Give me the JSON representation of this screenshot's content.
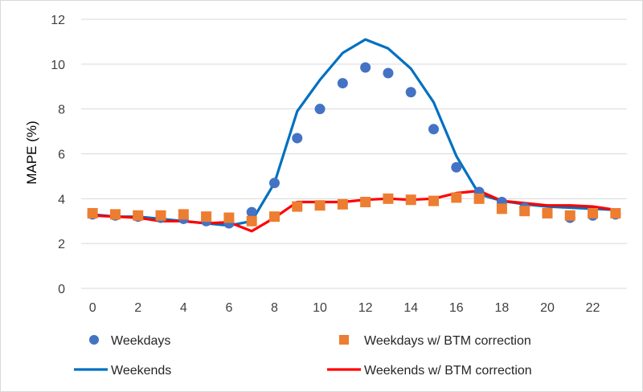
{
  "chart_data": {
    "type": "line",
    "xlabel": "",
    "ylabel": "MAPE (%)",
    "ylim": [
      0,
      12
    ],
    "xlim": [
      0,
      23
    ],
    "y_ticks": [
      "0",
      "2",
      "4",
      "6",
      "8",
      "10",
      "12"
    ],
    "x_ticks": [
      "0",
      "2",
      "4",
      "6",
      "8",
      "10",
      "12",
      "14",
      "16",
      "18",
      "20",
      "22"
    ],
    "grid": "horizontal",
    "legend_position": "bottom",
    "x": [
      0,
      1,
      2,
      3,
      4,
      5,
      6,
      7,
      8,
      9,
      10,
      11,
      12,
      13,
      14,
      15,
      16,
      17,
      18,
      19,
      20,
      21,
      22,
      23
    ],
    "series": [
      {
        "name": "Weekdays",
        "style": "circle-markers",
        "color": "#4472c4",
        "values": [
          3.3,
          3.25,
          3.2,
          3.15,
          3.1,
          3.0,
          2.9,
          3.4,
          4.7,
          6.7,
          8.0,
          9.15,
          9.85,
          9.6,
          8.75,
          7.1,
          5.4,
          4.3,
          3.85,
          3.6,
          3.35,
          3.15,
          3.25,
          3.3
        ]
      },
      {
        "name": "Weekdays w/ BTM correction",
        "style": "square-markers",
        "color": "#ed7d31",
        "values": [
          3.35,
          3.3,
          3.25,
          3.25,
          3.3,
          3.2,
          3.15,
          3.0,
          3.2,
          3.65,
          3.7,
          3.75,
          3.85,
          4.0,
          3.95,
          3.9,
          4.05,
          4.0,
          3.55,
          3.45,
          3.35,
          3.25,
          3.35,
          3.35
        ]
      },
      {
        "name": "Weekends",
        "style": "line",
        "color": "#0070c0",
        "values": [
          3.3,
          3.2,
          3.2,
          3.1,
          3.0,
          2.9,
          2.8,
          3.0,
          4.7,
          7.9,
          9.3,
          10.5,
          11.1,
          10.7,
          9.8,
          8.3,
          5.9,
          4.2,
          3.9,
          3.75,
          3.65,
          3.6,
          3.55,
          3.5
        ]
      },
      {
        "name": "Weekends w/ BTM correction",
        "style": "line",
        "color": "#ff0000",
        "values": [
          3.25,
          3.2,
          3.15,
          3.0,
          3.0,
          2.9,
          2.95,
          2.55,
          3.15,
          3.85,
          3.85,
          3.85,
          3.95,
          4.0,
          3.95,
          4.0,
          4.25,
          4.35,
          3.9,
          3.8,
          3.7,
          3.7,
          3.65,
          3.5
        ]
      }
    ]
  }
}
